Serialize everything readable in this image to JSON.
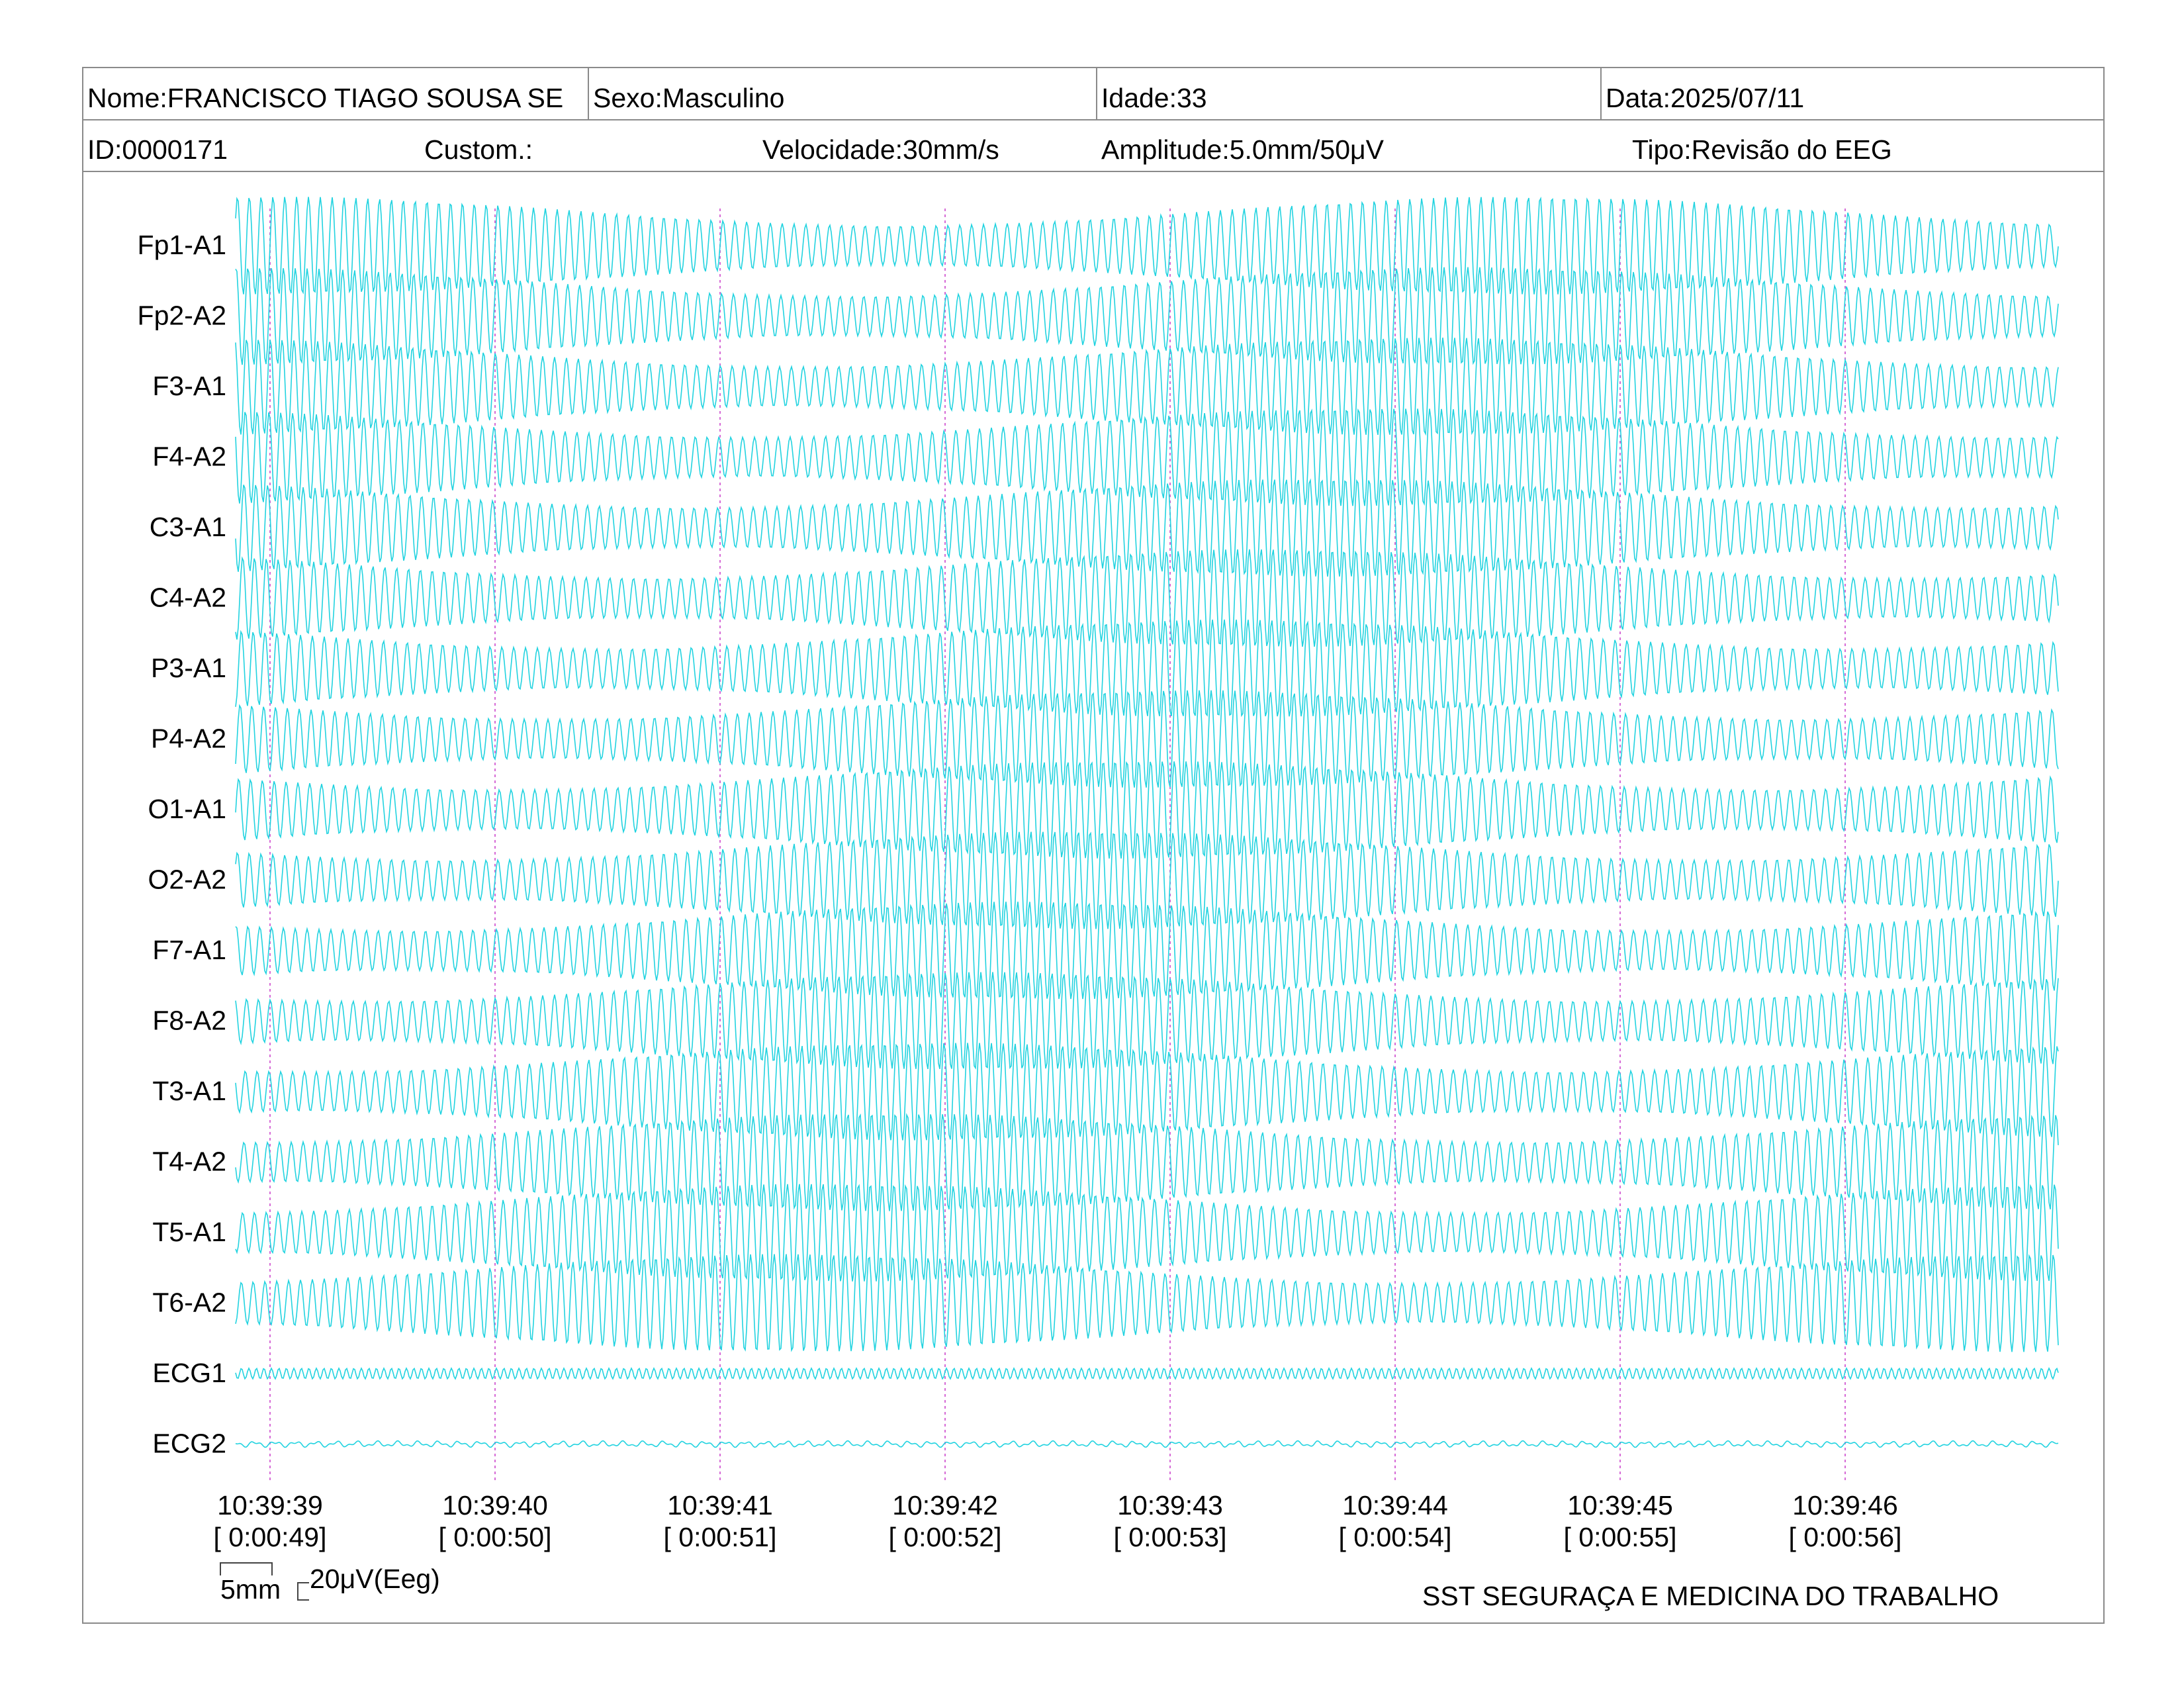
{
  "header": {
    "nome": "Nome:FRANCISCO TIAGO SOUSA SE",
    "sexo": "Sexo:Masculino",
    "idade": "Idade:33",
    "data": "Data:2025/07/11",
    "id": "ID:0000171",
    "custom": "Custom.:",
    "velocidade": "Velocidade:30mm/s",
    "amplitude": "Amplitude:5.0mm/50μV",
    "tipo": "Tipo:Revisão do EEG"
  },
  "scale": {
    "mm_label": "5mm",
    "uv_label": "20μV(Eeg)"
  },
  "footer": {
    "org": "SST SEGURAÇA E MEDICINA DO TRABALHO"
  },
  "colors": {
    "trace": "#22d3e0",
    "marker": "#d66ad6",
    "border": "#8a8a8a"
  },
  "chart_data": {
    "type": "line",
    "channels": [
      "Fp1-A1",
      "Fp2-A2",
      "F3-A1",
      "F4-A2",
      "C3-A1",
      "C4-A2",
      "P3-A1",
      "P4-A2",
      "O1-A1",
      "O2-A2",
      "F7-A1",
      "F8-A2",
      "T3-A1",
      "T4-A2",
      "T5-A1",
      "T6-A2",
      "ECG1",
      "ECG2"
    ],
    "time_ticks": [
      {
        "time": "10:39:39",
        "elapsed": "[ 0:00:49]"
      },
      {
        "time": "10:39:40",
        "elapsed": "[ 0:00:50]"
      },
      {
        "time": "10:39:41",
        "elapsed": "[ 0:00:51]"
      },
      {
        "time": "10:39:42",
        "elapsed": "[ 0:00:52]"
      },
      {
        "time": "10:39:43",
        "elapsed": "[ 0:00:53]"
      },
      {
        "time": "10:39:44",
        "elapsed": "[ 0:00:54]"
      },
      {
        "time": "10:39:45",
        "elapsed": "[ 0:00:55]"
      },
      {
        "time": "10:39:46",
        "elapsed": "[ 0:00:56]"
      }
    ],
    "xlim_seconds": [
      -0.15,
      8.0
    ],
    "eeg_frequency_hz": 19,
    "eeg_modulation_hz": 0.18,
    "ecg1_frequency_hz": 30,
    "grid": false,
    "legend": "none"
  }
}
